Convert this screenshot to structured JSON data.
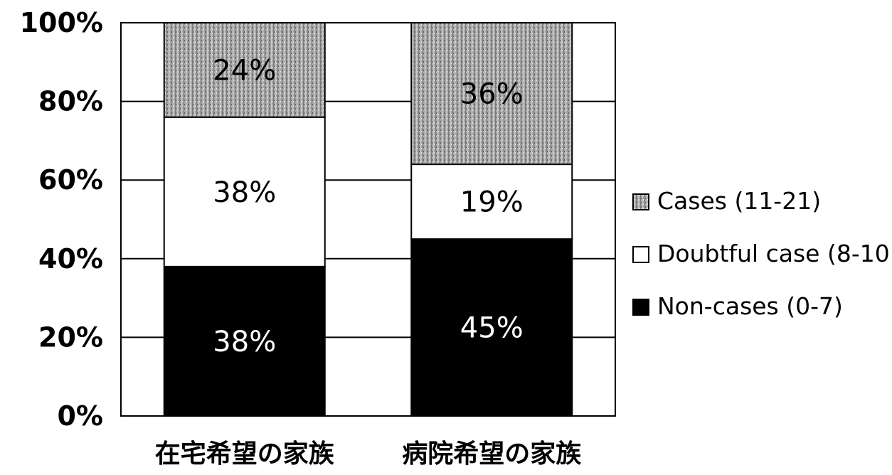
{
  "chart_data": {
    "type": "bar",
    "stacked": true,
    "normalized": true,
    "categories": [
      "在宅希望の家族",
      "病院希望の家族"
    ],
    "series": [
      {
        "name": "Non-cases (0-7)",
        "values": [
          38,
          45
        ],
        "labels": [
          "38%",
          "45%"
        ],
        "color": "#000000",
        "label_color": "#ffffff"
      },
      {
        "name": "Doubtful case (8-10",
        "values": [
          38,
          19
        ],
        "labels": [
          "38%",
          "19%"
        ],
        "color": "#ffffff",
        "label_color": "#000000"
      },
      {
        "name": "Cases (11-21)",
        "values": [
          24,
          36
        ],
        "labels": [
          "24%",
          "36%"
        ],
        "color": "#a8a8a8",
        "label_color": "#000000"
      }
    ],
    "ylim": [
      0,
      100
    ],
    "yticks": [
      "0%",
      "20%",
      "40%",
      "60%",
      "80%",
      "100%"
    ],
    "grid": true,
    "legend": "right",
    "legend_order": [
      "Cases (11-21)",
      "Doubtful case (8-10",
      "Non-cases (0-7)"
    ]
  }
}
